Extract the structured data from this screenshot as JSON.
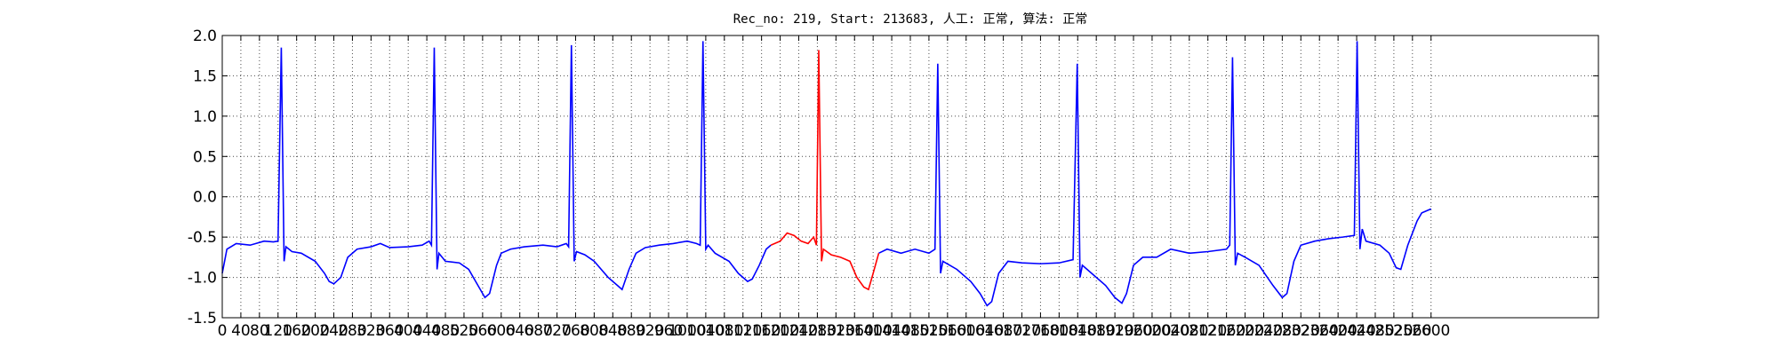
{
  "chart_data": {
    "type": "line",
    "title": "Rec_no: 219, Start: 213683, 人工: 正常, 算法: 正常",
    "xlim": [
      0,
      2960
    ],
    "ylim": [
      -1.5,
      2.0
    ],
    "grid": true,
    "xticks": [
      0,
      40,
      80,
      120,
      160,
      200,
      240,
      280,
      320,
      360,
      400,
      440,
      480,
      520,
      560,
      600,
      640,
      680,
      720,
      760,
      800,
      840,
      880,
      920,
      960,
      1000,
      1040,
      1080,
      1120,
      1160,
      1200,
      1240,
      1280,
      1320,
      1360,
      1400,
      1440,
      1480,
      1520,
      1560,
      1600,
      1640,
      1680,
      1720,
      1760,
      1800,
      1840,
      1880,
      1920,
      1960,
      2000,
      2040,
      2080,
      2120,
      2160,
      2200,
      2240,
      2280,
      2320,
      2360,
      2400,
      2440,
      2480,
      2520,
      2560,
      2600
    ],
    "yticks": [
      -1.5,
      {
        "value": -1.0,
        "label": "-1.0"
      },
      -0.5,
      {
        "value": 0.0,
        "label": "0.0"
      },
      0.5,
      {
        "value": 1.0,
        "label": "1.0"
      },
      1.5,
      {
        "value": 2.0,
        "label": "2.0"
      }
    ],
    "series": [
      {
        "color": "#0000ff",
        "x": [
          0,
          10,
          30,
          60,
          90,
          110,
          120,
          127,
          133,
          137,
          150,
          170,
          200,
          220,
          230,
          240,
          255,
          270,
          290,
          320,
          340,
          360,
          400,
          430,
          445,
          450,
          456,
          462,
          466,
          480,
          510,
          530,
          550,
          565,
          575,
          590,
          600,
          620,
          650,
          690,
          720,
          740,
          745,
          751,
          757,
          762,
          780,
          800,
          830,
          850,
          860,
          875,
          890,
          910,
          940,
          970,
          1000,
          1020,
          1028,
          1034,
          1040,
          1045,
          1060,
          1090,
          1110,
          1130,
          1140,
          1155,
          1170,
          1180,
          null,
          1412,
          1430,
          1460,
          1490,
          1520,
          1533,
          1539,
          1545,
          1550,
          1580,
          1610,
          1630,
          1645,
          1655,
          1670,
          1690,
          1720,
          1760,
          1800,
          1830,
          1839,
          1845,
          1850,
          1870,
          1900,
          1920,
          1935,
          1945,
          1960,
          1980,
          2010,
          2040,
          2080,
          2120,
          2160,
          2167,
          2173,
          2179,
          2184,
          2200,
          2230,
          2260,
          2280,
          2290,
          2305,
          2320,
          2350,
          2380,
          2410,
          2435,
          2441,
          2447,
          2452,
          2460,
          2490,
          2510,
          2525,
          2535,
          2550,
          2570,
          2580,
          2600
        ],
        "values": [
          -0.95,
          -0.65,
          -0.58,
          -0.6,
          -0.55,
          -0.56,
          -0.55,
          1.85,
          -0.8,
          -0.62,
          -0.68,
          -0.7,
          -0.8,
          -0.95,
          -1.05,
          -1.08,
          -1.0,
          -0.75,
          -0.65,
          -0.62,
          -0.58,
          -0.63,
          -0.62,
          -0.6,
          -0.55,
          -0.6,
          1.85,
          -0.9,
          -0.7,
          -0.8,
          -0.82,
          -0.9,
          -1.1,
          -1.25,
          -1.2,
          -0.85,
          -0.7,
          -0.65,
          -0.62,
          -0.6,
          -0.62,
          -0.58,
          -0.62,
          1.88,
          -0.8,
          -0.68,
          -0.72,
          -0.8,
          -1.0,
          -1.1,
          -1.15,
          -0.9,
          -0.7,
          -0.63,
          -0.6,
          -0.58,
          -0.55,
          -0.58,
          -0.6,
          1.93,
          -0.65,
          -0.6,
          -0.7,
          -0.8,
          -0.95,
          -1.05,
          -1.02,
          -0.85,
          -0.65,
          -0.6,
          null,
          -0.7,
          -0.65,
          -0.7,
          -0.65,
          -0.7,
          -0.65,
          1.65,
          -0.95,
          -0.8,
          -0.9,
          -1.05,
          -1.2,
          -1.35,
          -1.3,
          -0.95,
          -0.8,
          -0.82,
          -0.83,
          -0.82,
          -0.78,
          1.65,
          -1.0,
          -0.85,
          -0.95,
          -1.1,
          -1.25,
          -1.32,
          -1.2,
          -0.85,
          -0.75,
          -0.75,
          -0.65,
          -0.7,
          -0.68,
          -0.65,
          -0.6,
          1.73,
          -0.85,
          -0.7,
          -0.75,
          -0.85,
          -1.1,
          -1.25,
          -1.2,
          -0.8,
          -0.6,
          -0.55,
          -0.52,
          -0.5,
          -0.48,
          1.93,
          -0.65,
          -0.4,
          -0.55,
          -0.6,
          -0.7,
          -0.88,
          -0.9,
          -0.6,
          -0.3,
          -0.2,
          -0.15
        ]
      },
      {
        "color": "#ff0000",
        "x": [
          1180,
          1200,
          1215,
          1230,
          1245,
          1260,
          1272,
          1278,
          1283,
          1289,
          1293,
          1310,
          1330,
          1350,
          1365,
          1380,
          1390,
          1400,
          1412
        ],
        "values": [
          -0.6,
          -0.55,
          -0.45,
          -0.48,
          -0.55,
          -0.58,
          -0.5,
          -0.6,
          1.82,
          -0.8,
          -0.65,
          -0.72,
          -0.75,
          -0.8,
          -1.0,
          -1.12,
          -1.15,
          -0.95,
          -0.7
        ]
      }
    ]
  }
}
